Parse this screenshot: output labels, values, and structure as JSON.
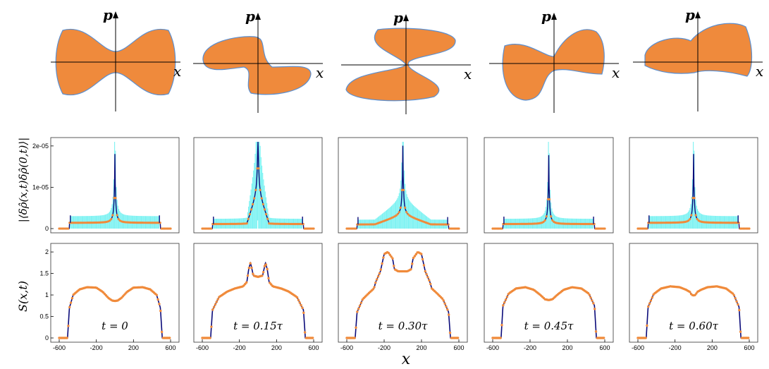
{
  "figure": {
    "phase_space_axis_labels": {
      "x": "x",
      "p": "p"
    },
    "row2_ylabel": "|⟨δρ̂(x,t)δρ̂(0,t)⟩|",
    "row3_ylabel": "S(x,t)",
    "bottom_xlabel": "x"
  },
  "colors": {
    "droplet_fill": "#ef8a3c",
    "droplet_edge": "#5b8fd0",
    "noise": "#66f0f0",
    "theory_line": "#0b0b7a",
    "markers": "#f08a3a"
  },
  "chart_data": {
    "type": "line",
    "times": [
      "t = 0",
      "t = 0.15τ",
      "t = 0.30τ",
      "t = 0.45τ",
      "t = 0.60τ"
    ],
    "x_ticks": [
      "-600",
      "-200",
      "200",
      "600"
    ],
    "x_tick_values": [
      -600,
      -200,
      200,
      600
    ],
    "xlim": [
      -600,
      600
    ],
    "correlation": {
      "ylabel": "|⟨δρ̂(x,t)δρ̂(0,t)⟩|",
      "ylim": [
        0,
        2.1e-05
      ],
      "y_ticks": [
        "0",
        "1e-05",
        "2e-05"
      ],
      "y_tick_values": [
        0,
        1e-05,
        2e-05
      ],
      "panels": [
        {
          "time": "t = 0",
          "edge_x": 480,
          "baseline": 1.4e-06,
          "inner_x": [],
          "inner_level": 0
        },
        {
          "time": "t = 0.15τ",
          "edge_x": 480,
          "baseline": 1.1e-06,
          "inner_x": [
            -120,
            120
          ],
          "inner_level": 1e-05
        },
        {
          "time": "t = 0.30τ",
          "edge_x": 480,
          "baseline": 1e-06,
          "inner_x": [
            -300,
            300
          ],
          "inner_level": 3e-06
        },
        {
          "time": "t = 0.45τ",
          "edge_x": 480,
          "baseline": 1.1e-06,
          "inner_x": [],
          "inner_level": 0
        },
        {
          "time": "t = 0.60τ",
          "edge_x": 480,
          "baseline": 1.4e-06,
          "inner_x": [],
          "inner_level": 0
        }
      ]
    },
    "structure_factor": {
      "ylabel": "S(x,t)",
      "ylim": [
        0,
        2.1
      ],
      "y_ticks": [
        "0",
        "0.5",
        "1",
        "1.5",
        "2"
      ],
      "y_tick_values": [
        0,
        0.5,
        1,
        1.5,
        2
      ],
      "panels": [
        {
          "time": "t = 0",
          "x": [
            -600,
            -510,
            -490,
            -450,
            -380,
            -300,
            -200,
            -130,
            -70,
            -30,
            0,
            30,
            70,
            130,
            200,
            300,
            380,
            450,
            490,
            510,
            600
          ],
          "y": [
            0,
            0,
            0.7,
            1.0,
            1.13,
            1.18,
            1.17,
            1.07,
            0.93,
            0.87,
            0.86,
            0.87,
            0.93,
            1.07,
            1.17,
            1.18,
            1.13,
            1.0,
            0.7,
            0,
            0
          ]
        },
        {
          "time": "t = 0.15τ",
          "x": [
            -600,
            -510,
            -490,
            -420,
            -330,
            -250,
            -160,
            -120,
            -100,
            -80,
            -50,
            0,
            50,
            80,
            100,
            120,
            160,
            250,
            330,
            420,
            490,
            510,
            600
          ],
          "y": [
            0,
            0,
            0.65,
            0.95,
            1.08,
            1.15,
            1.2,
            1.3,
            1.6,
            1.75,
            1.45,
            1.42,
            1.45,
            1.75,
            1.6,
            1.3,
            1.2,
            1.15,
            1.08,
            0.95,
            0.65,
            0,
            0
          ]
        },
        {
          "time": "t = 0.30τ",
          "x": [
            -600,
            -510,
            -490,
            -430,
            -360,
            -310,
            -290,
            -240,
            -200,
            -160,
            -110,
            -90,
            -50,
            0,
            50,
            90,
            110,
            160,
            200,
            240,
            290,
            310,
            360,
            430,
            490,
            510,
            600
          ],
          "y": [
            0,
            0,
            0.6,
            0.9,
            1.05,
            1.15,
            1.3,
            1.55,
            1.95,
            2.0,
            1.85,
            1.6,
            1.55,
            1.55,
            1.55,
            1.6,
            1.85,
            2.0,
            1.95,
            1.55,
            1.3,
            1.15,
            1.05,
            0.9,
            0.6,
            0,
            0
          ]
        },
        {
          "time": "t = 0.45τ",
          "x": [
            -600,
            -510,
            -490,
            -430,
            -350,
            -250,
            -160,
            -90,
            -40,
            0,
            40,
            90,
            160,
            250,
            350,
            430,
            490,
            510,
            600
          ],
          "y": [
            0,
            0,
            0.75,
            1.03,
            1.15,
            1.18,
            1.12,
            1.0,
            0.9,
            0.88,
            0.9,
            1.0,
            1.12,
            1.18,
            1.15,
            1.03,
            0.75,
            0,
            0
          ]
        },
        {
          "time": "t = 0.60τ",
          "x": [
            -600,
            -510,
            -490,
            -430,
            -350,
            -250,
            -150,
            -80,
            -40,
            -20,
            0,
            20,
            40,
            80,
            150,
            250,
            350,
            430,
            490,
            510,
            600
          ],
          "y": [
            0,
            0,
            0.72,
            1.02,
            1.15,
            1.2,
            1.18,
            1.12,
            1.07,
            1.0,
            0.99,
            1.0,
            1.07,
            1.12,
            1.18,
            1.2,
            1.15,
            1.02,
            0.72,
            0,
            0
          ]
        }
      ]
    }
  }
}
